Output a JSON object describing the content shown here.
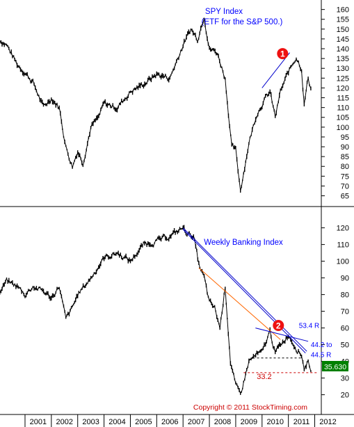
{
  "chart_data": [
    {
      "type": "line",
      "title": "SPY Index",
      "subtitle": "(ETF for the S&P 500.)",
      "yticks": [
        65,
        70,
        75,
        80,
        85,
        90,
        95,
        100,
        105,
        110,
        115,
        120,
        125,
        130,
        135,
        140,
        145,
        150,
        155,
        160
      ],
      "ylim": [
        62,
        162
      ],
      "x": [
        2000.0,
        2000.3,
        2000.7,
        2001.0,
        2001.3,
        2001.7,
        2002.0,
        2002.3,
        2002.55,
        2002.8,
        2003.0,
        2003.2,
        2003.5,
        2003.8,
        2004.0,
        2004.5,
        2005.0,
        2005.5,
        2006.0,
        2006.5,
        2007.0,
        2007.3,
        2007.55,
        2007.8,
        2008.0,
        2008.3,
        2008.6,
        2008.85,
        2009.0,
        2009.18,
        2009.5,
        2009.8,
        2010.0,
        2010.3,
        2010.5,
        2010.7,
        2011.0,
        2011.3,
        2011.5,
        2011.6,
        2011.75,
        2011.85
      ],
      "y": [
        145,
        142,
        132,
        128,
        123,
        110,
        115,
        110,
        90,
        80,
        88,
        82,
        100,
        105,
        112,
        110,
        118,
        122,
        127,
        125,
        142,
        150,
        145,
        157,
        140,
        138,
        125,
        90,
        88,
        68,
        92,
        107,
        112,
        118,
        105,
        118,
        128,
        136,
        130,
        112,
        125,
        120
      ],
      "annotations": [
        {
          "type": "trendline",
          "x": [
            2010.0,
            2011.05
          ],
          "y": [
            120,
            138
          ]
        },
        {
          "type": "marker",
          "text": "1",
          "x": 2010.78,
          "y": 137.5
        }
      ]
    },
    {
      "type": "line",
      "title": "Weekly Banking Index",
      "yticks": [
        20,
        30,
        40,
        50,
        60,
        70,
        80,
        90,
        100,
        110,
        120
      ],
      "ylim": [
        14,
        124
      ],
      "x": [
        2000.0,
        2000.3,
        2000.7,
        2001.0,
        2001.3,
        2001.7,
        2002.0,
        2002.3,
        2002.55,
        2002.8,
        2003.0,
        2003.5,
        2004.0,
        2004.5,
        2005.0,
        2005.5,
        2006.0,
        2006.5,
        2007.0,
        2007.15,
        2007.4,
        2007.6,
        2007.8,
        2008.0,
        2008.2,
        2008.4,
        2008.6,
        2008.8,
        2009.0,
        2009.18,
        2009.5,
        2009.8,
        2010.0,
        2010.3,
        2010.5,
        2010.7,
        2011.0,
        2011.3,
        2011.5,
        2011.6,
        2011.75,
        2011.85
      ],
      "y": [
        80,
        88,
        85,
        80,
        85,
        82,
        78,
        85,
        65,
        72,
        80,
        90,
        102,
        105,
        100,
        110,
        112,
        115,
        120,
        117,
        115,
        98,
        90,
        75,
        72,
        60,
        85,
        40,
        25,
        20,
        40,
        44,
        45,
        58,
        45,
        50,
        56,
        48,
        44,
        36,
        40,
        35.63
      ],
      "annotations": [
        {
          "type": "trendline",
          "color": "#0000cc",
          "x": [
            2007.0,
            2011.7
          ],
          "y": [
            120,
            46
          ]
        },
        {
          "type": "trendline",
          "color": "#0000cc",
          "x": [
            2007.0,
            2011.65
          ],
          "y": [
            119,
            45
          ]
        },
        {
          "type": "trendline",
          "color": "#ff6600",
          "x": [
            2007.6,
            2010.7
          ],
          "y": [
            96,
            53
          ]
        },
        {
          "type": "trendline",
          "color": "#0000cc",
          "x": [
            2009.75,
            2011.75
          ],
          "y": [
            60,
            52
          ]
        },
        {
          "type": "hline",
          "color": "#000000",
          "dashed": true,
          "x": [
            2009.65,
            2011.5
          ],
          "y": [
            42,
            42
          ]
        },
        {
          "type": "hline",
          "color": "#cc0000",
          "dashed": true,
          "x": [
            2009.3,
            2012.1
          ],
          "y": [
            33.2,
            33.2
          ]
        },
        {
          "type": "marker",
          "text": "2",
          "x": 2010.62,
          "y": 61.5
        },
        {
          "type": "label",
          "text": "53.4 R",
          "x": 2011.4,
          "y": 60
        },
        {
          "type": "label",
          "text": "44.2 to",
          "x": 2011.85,
          "y": 48.5
        },
        {
          "type": "label",
          "text": "44.5 R",
          "x": 2011.85,
          "y": 42.5
        },
        {
          "type": "label",
          "text": "33.2",
          "x": 2009.8,
          "y": 29.5,
          "color": "#cc0000"
        }
      ],
      "last_value": "35.630"
    }
  ],
  "xaxis": {
    "labels": [
      "2001",
      "2002",
      "2003",
      "2004",
      "2005",
      "2006",
      "2007",
      "2008",
      "2009",
      "2010",
      "2011",
      "2012"
    ],
    "years": [
      2001,
      2002,
      2003,
      2004,
      2005,
      2006,
      2007,
      2008,
      2009,
      2010,
      2011,
      2012
    ]
  },
  "copyright": "Copyright © 2011 StockTiming.com",
  "colors": {
    "price": "#000000",
    "title": "#0000ff",
    "trend_blue": "#0000cc",
    "trend_orange": "#ff6600",
    "support_red": "#cc0000",
    "marker": "#ee1111",
    "last_value_bg": "#008000"
  }
}
